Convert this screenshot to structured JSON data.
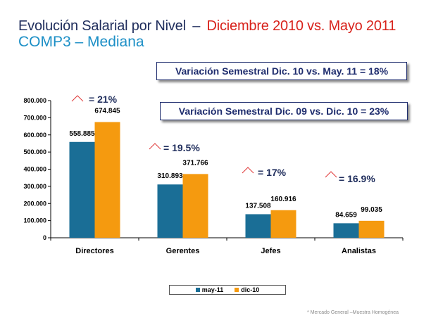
{
  "title": {
    "part1": "Evolución Salarial por Nivel",
    "dash": "–",
    "part2": "Diciembre 2010 vs. Mayo 2011",
    "subtitle": "COMP3 – Mediana"
  },
  "boxes": {
    "semestral_1": "Variación Semestral Dic. 10 vs. May. 11 =  18%",
    "semestral_2": "Variación Semestral Dic. 09 vs. Dic. 10 =  23%"
  },
  "footnote": "* Mercado General –Muestra Homogénea",
  "colors": {
    "may11": "#1a6e96",
    "dic10": "#f59a0f",
    "title_red": "#d8231c",
    "title_blue": "#1c8fc6",
    "triangle": "#e03a3a"
  },
  "chart_data": {
    "type": "bar",
    "categories": [
      "Directores",
      "Gerentes",
      "Jefes",
      "Analistas"
    ],
    "series": [
      {
        "name": "may-11",
        "values": [
          558885,
          310893,
          137508,
          84659
        ],
        "labels": [
          "558.885",
          "310.893",
          "137.508",
          "84.659"
        ]
      },
      {
        "name": "dic-10",
        "values": [
          674845,
          371766,
          160916,
          99035
        ],
        "labels": [
          "674.845",
          "371.766",
          "160.916",
          "99.035"
        ]
      }
    ],
    "ylim": [
      0,
      800000
    ],
    "yticks": [
      0,
      100000,
      200000,
      300000,
      400000,
      500000,
      600000,
      700000,
      800000
    ],
    "ytick_labels": [
      "0",
      "100.000",
      "200.000",
      "300.000",
      "400.000",
      "500.000",
      "600.000",
      "700.000",
      "800.000"
    ],
    "annotations": [
      "= 21%",
      "= 19.5%",
      "= 17%",
      "= 16.9%"
    ],
    "grid": false,
    "legend_position": "bottom"
  }
}
